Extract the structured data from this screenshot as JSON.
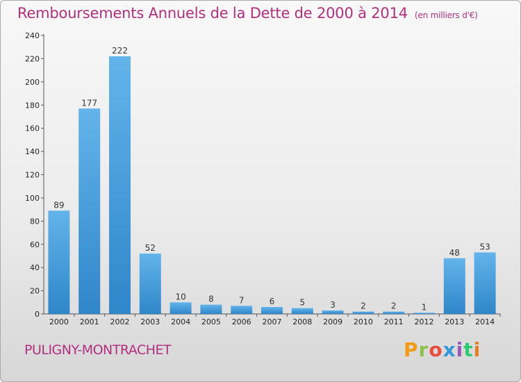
{
  "header": {
    "title": "Remboursements Annuels de la Dette de 2000 à 2014",
    "unit": "(en milliers d'€)"
  },
  "footer": {
    "commune": "PULIGNY-MONTRACHET",
    "logo_text": "Proxiti"
  },
  "colors": {
    "title": "#b0307c",
    "bar_top": "#62b4ea",
    "bar_bottom": "#2f86c9",
    "logo": [
      "#f39c12",
      "#8bc34a",
      "#e74c3c",
      "#3498db",
      "#9b59b6",
      "#2ecc71",
      "#e67e22"
    ]
  },
  "chart_data": {
    "type": "bar",
    "title": "Remboursements Annuels de la Dette de 2000 à 2014",
    "xlabel": "",
    "ylabel": "",
    "categories": [
      "2000",
      "2001",
      "2002",
      "2003",
      "2004",
      "2005",
      "2006",
      "2007",
      "2008",
      "2009",
      "2010",
      "2011",
      "2012",
      "2013",
      "2014"
    ],
    "values": [
      89,
      177,
      222,
      52,
      10,
      8,
      7,
      6,
      5,
      3,
      2,
      2,
      1,
      48,
      53
    ],
    "ylim": [
      0,
      240
    ],
    "yticks": [
      0,
      20,
      40,
      60,
      80,
      100,
      120,
      140,
      160,
      180,
      200,
      220,
      240
    ],
    "grid": false,
    "legend": "none"
  }
}
